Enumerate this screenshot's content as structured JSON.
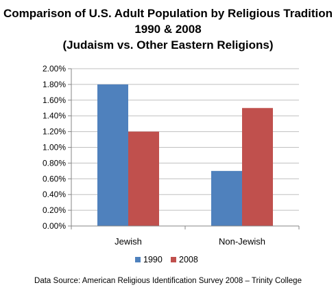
{
  "chart_data": {
    "type": "bar",
    "title_lines": [
      "Comparison of U.S. Adult Population by Religious Tradition",
      "1990 & 2008",
      "(Judaism vs. Other Eastern Religions)"
    ],
    "categories": [
      "Jewish",
      "Non-Jewish"
    ],
    "series": [
      {
        "name": "1990",
        "values": [
          1.8,
          0.7
        ],
        "color": "#4f81bd"
      },
      {
        "name": "2008",
        "values": [
          1.2,
          1.5
        ],
        "color": "#c0504d"
      }
    ],
    "y_ticks": [
      "0.00%",
      "0.20%",
      "0.40%",
      "0.60%",
      "0.80%",
      "1.00%",
      "1.20%",
      "1.40%",
      "1.60%",
      "1.80%",
      "2.00%"
    ],
    "ylim": [
      0,
      2.0
    ],
    "grid": true,
    "legend_position": "bottom",
    "xlabel": "",
    "ylabel": ""
  },
  "source_note": "Data Source: American Religious Identification Survey 2008 – Trinity College",
  "colors": {
    "gridline": "#bfbfbf",
    "axis": "#868686"
  }
}
